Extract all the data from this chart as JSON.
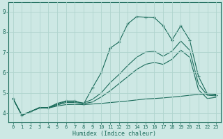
{
  "xlabel": "Humidex (Indice chaleur)",
  "bg_color": "#cde8e4",
  "grid_color": "#b0d4ce",
  "line_color": "#1a6b5a",
  "x_ticks": [
    0,
    1,
    2,
    3,
    4,
    5,
    6,
    7,
    8,
    9,
    10,
    11,
    12,
    13,
    14,
    15,
    16,
    17,
    18,
    19,
    20,
    21,
    22,
    23
  ],
  "y_ticks": [
    4,
    5,
    6,
    7,
    8,
    9
  ],
  "ylim": [
    3.55,
    9.45
  ],
  "xlim": [
    -0.5,
    23.5
  ],
  "series_main_x": [
    0,
    1,
    2,
    3,
    4,
    5,
    6,
    7,
    8,
    9,
    10,
    11,
    12,
    13,
    14,
    15,
    16,
    17,
    18,
    19,
    20,
    21,
    22,
    23
  ],
  "series_main_y": [
    4.72,
    3.9,
    4.08,
    4.28,
    4.28,
    4.48,
    4.6,
    4.6,
    4.45,
    5.25,
    6.0,
    7.2,
    7.5,
    8.4,
    8.75,
    8.72,
    8.7,
    8.3,
    7.6,
    8.3,
    7.6,
    5.8,
    4.95,
    4.9
  ],
  "series_line1_x": [
    0,
    1,
    2,
    3,
    4,
    5,
    6,
    7,
    8,
    9,
    10,
    11,
    12,
    13,
    14,
    15,
    16,
    17,
    18,
    19,
    20,
    21,
    22,
    23
  ],
  "series_line1_y": [
    4.72,
    3.9,
    4.08,
    4.27,
    4.27,
    4.44,
    4.57,
    4.57,
    4.5,
    4.68,
    5.0,
    5.5,
    5.9,
    6.35,
    6.75,
    7.0,
    7.05,
    6.8,
    7.05,
    7.55,
    7.1,
    5.42,
    4.88,
    4.85
  ],
  "series_line2_x": [
    0,
    1,
    2,
    3,
    4,
    5,
    6,
    7,
    8,
    9,
    10,
    11,
    12,
    13,
    14,
    15,
    16,
    17,
    18,
    19,
    20,
    21,
    22,
    23
  ],
  "series_line2_y": [
    4.72,
    3.9,
    4.08,
    4.26,
    4.26,
    4.4,
    4.52,
    4.52,
    4.47,
    4.55,
    4.8,
    5.1,
    5.45,
    5.8,
    6.15,
    6.4,
    6.5,
    6.4,
    6.65,
    7.1,
    6.75,
    5.15,
    4.72,
    4.78
  ],
  "series_flat_x": [
    0,
    1,
    2,
    3,
    4,
    5,
    6,
    7,
    8,
    9,
    10,
    11,
    12,
    13,
    14,
    15,
    16,
    17,
    18,
    19,
    20,
    21,
    22,
    23
  ],
  "series_flat_y": [
    4.72,
    3.9,
    4.08,
    4.25,
    4.25,
    4.35,
    4.42,
    4.43,
    4.42,
    4.45,
    4.48,
    4.52,
    4.56,
    4.6,
    4.65,
    4.7,
    4.72,
    4.75,
    4.79,
    4.83,
    4.88,
    4.92,
    4.96,
    4.93
  ]
}
